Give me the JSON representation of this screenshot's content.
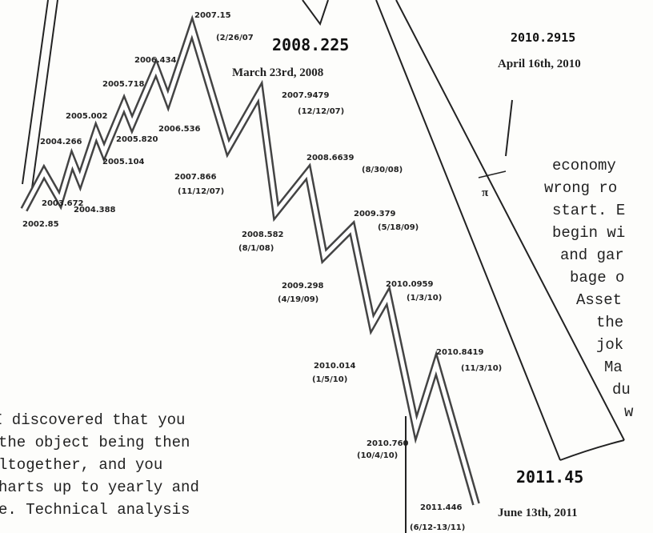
{
  "labels": [
    "2007.15",
    "(2/26/07",
    "2008.225",
    "March 23rd, 2008",
    "2010.2915",
    "April 16th, 2010",
    "2006.434",
    "2005.718",
    "2005.002",
    "2004.266",
    "2003.672",
    "2002.85",
    "2004.388",
    "2005.104",
    "2005.820",
    "2006.536",
    "2007.9479",
    "(12/12/07)",
    "2007.866",
    "(11/12/07)",
    "2008.6639",
    "(8/30/08)",
    "2008.582",
    "(8/1/08)",
    "2009.379",
    "(5/18/09)",
    "2009.298",
    "(4/19/09)",
    "2010.0959",
    "(1/3/10)",
    "2010.014",
    "(1/5/10)",
    "2010.8419",
    "(11/3/10)",
    "2010.760",
    "(10/4/10)",
    "2011.446",
    "(6/12-13/11)",
    "2011.45",
    "June 13th, 2011",
    "π"
  ],
  "right_text": [
    "economy",
    "wrong ro",
    "start. E",
    "begin wi",
    "and gar",
    "bage o",
    "Asset",
    "the",
    "jok",
    "Ma",
    "du",
    "w"
  ],
  "left_text": [
    "I discovered that you",
    "the object being then",
    "ltogether, and you",
    "harts up to yearly and",
    "e. Technical analysis"
  ]
}
